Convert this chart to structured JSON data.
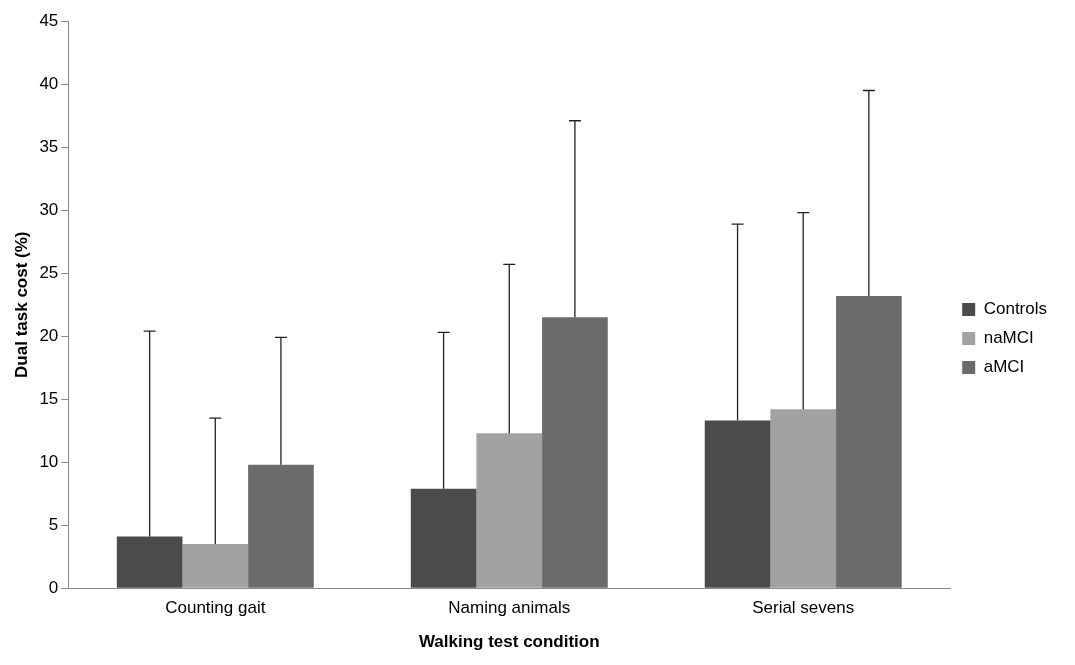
{
  "chart_data": {
    "type": "bar",
    "xlabel": "Walking test condition",
    "ylabel": "Dual task cost (%)",
    "categories": [
      "Counting gait",
      "Naming animals",
      "Serial sevens"
    ],
    "series": [
      {
        "name": "Controls",
        "color": "#4b4b4b",
        "values": [
          4.1,
          7.9,
          13.3
        ],
        "errors": [
          [
            4.1,
            20.4
          ],
          [
            7.9,
            20.3
          ],
          [
            13.3,
            28.9
          ]
        ]
      },
      {
        "name": "naMCI",
        "color": "#a2a2a2",
        "values": [
          3.5,
          12.3,
          14.2
        ],
        "errors": [
          [
            3.5,
            13.5
          ],
          [
            12.3,
            25.7
          ],
          [
            14.2,
            29.8
          ]
        ]
      },
      {
        "name": "aMCI",
        "color": "#6b6b6b",
        "values": [
          9.8,
          21.5,
          23.2
        ],
        "errors": [
          [
            9.8,
            19.9
          ],
          [
            21.5,
            37.1
          ],
          [
            23.2,
            39.5
          ]
        ]
      }
    ],
    "ylim": [
      0,
      45
    ],
    "yticks": [
      0,
      5,
      10,
      15,
      20,
      25,
      30,
      35,
      40,
      45
    ],
    "grid": false,
    "legend": "right"
  }
}
